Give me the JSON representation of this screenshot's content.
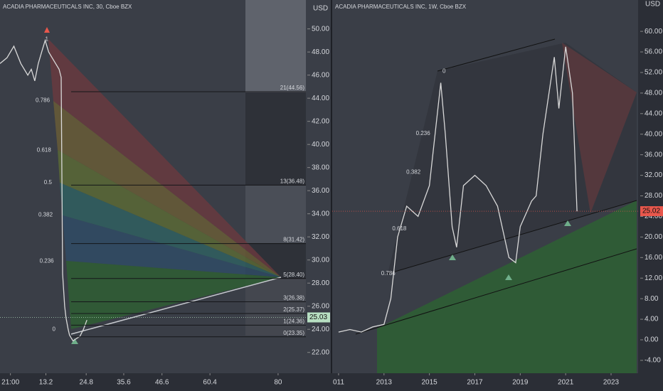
{
  "chart_data": [
    {
      "type": "line",
      "title": "ACADIA PHARMACEUTICALS INC, 30, Cboe BZX",
      "y_axis_label": "USD",
      "color": "#d9d9d9",
      "x": [
        0,
        2,
        4,
        6,
        8,
        9,
        10,
        11,
        12,
        13,
        14,
        15,
        16,
        17,
        17.6,
        18,
        18.6,
        19,
        19.6,
        20,
        21,
        22,
        23,
        24,
        25
      ],
      "values": [
        47,
        47.5,
        48.5,
        47,
        46,
        46.5,
        45.5,
        47,
        48,
        49,
        48,
        47.5,
        47,
        46.5,
        45.8,
        28.8,
        26,
        25,
        24,
        23.5,
        23,
        23.2,
        23.4,
        24,
        24.8
      ],
      "xlim": [
        0,
        88
      ],
      "xticks": [
        {
          "value": 3,
          "label": "21:00"
        },
        13.2,
        24.8,
        35.6,
        46.6,
        60.4,
        80
      ],
      "ylim": [
        20.2,
        52.5
      ],
      "yticks": [
        {
          "value": 22,
          "label": "22.00"
        },
        {
          "value": 24,
          "label": "24.00"
        },
        {
          "value": 26,
          "label": "26.00"
        },
        {
          "value": 28,
          "label": "28.00"
        },
        {
          "value": 30,
          "label": "30.00"
        },
        {
          "value": 32,
          "label": "32.00"
        },
        {
          "value": 34,
          "label": "34.00"
        },
        {
          "value": 36,
          "label": "36.00"
        },
        {
          "value": 38,
          "label": "38.00"
        },
        {
          "value": 40,
          "label": "40.00"
        },
        {
          "value": 42,
          "label": "42.00"
        },
        {
          "value": 44,
          "label": "44.00"
        },
        {
          "value": 46,
          "label": "46.00"
        },
        {
          "value": 48,
          "label": "48.00"
        },
        {
          "value": 50,
          "label": "50.00"
        }
      ],
      "fib_labels": [
        {
          "text": "1",
          "price": 49.1
        },
        {
          "text": "0.786",
          "price": 43.8
        },
        {
          "text": "0.618",
          "price": 39.5
        },
        {
          "text": "0.5",
          "price": 36.7
        },
        {
          "text": "0.382",
          "price": 33.9
        },
        {
          "text": "0.236",
          "price": 29.9
        },
        {
          "text": "0",
          "price": 24.0
        }
      ],
      "box_labels": [
        {
          "text": "21(44.56)",
          "price": 44.56
        },
        {
          "text": "13(36.48)",
          "price": 36.48
        },
        {
          "text": "8(31.42)",
          "price": 31.42
        },
        {
          "text": "5(28.40)",
          "price": 28.4
        },
        {
          "text": "3(26.38)",
          "price": 26.38
        },
        {
          "text": "2(25.37)",
          "price": 25.37
        },
        {
          "text": "1(24.36)",
          "price": 24.36
        },
        {
          "text": "0(23.35)",
          "price": 23.35
        }
      ],
      "last_price": {
        "value": 25.03,
        "label": "25.03",
        "color": "#b7dfc2"
      }
    },
    {
      "type": "line",
      "title": "ACADIA PHARMACEUTICALS INC, 1W, Cboe BZX",
      "y_axis_label": "USD",
      "color": "#d9d9d9",
      "x": [
        2011,
        2011.5,
        2012,
        2012.5,
        2013,
        2013.3,
        2013.6,
        2014,
        2014.5,
        2015,
        2015.5,
        2015.7,
        2016,
        2016.2,
        2016.5,
        2017,
        2017.5,
        2018,
        2018.5,
        2018.8,
        2019,
        2019.5,
        2019.7,
        2020,
        2020.5,
        2020.7,
        2021,
        2021.3,
        2021.5
      ],
      "values": [
        1.5,
        2,
        1.5,
        2.5,
        3,
        8,
        20,
        26,
        24,
        30,
        50,
        40,
        22,
        18,
        30,
        32,
        30,
        26,
        16,
        15,
        22,
        27,
        28,
        40,
        55,
        45,
        57,
        48,
        25
      ],
      "xlim": [
        2010.72,
        2024.19
      ],
      "xticks": [
        {
          "value": 2011,
          "label": "011"
        },
        2013,
        2015,
        2017,
        2019,
        2021,
        2023
      ],
      "ylim": [
        -6.5,
        66.1
      ],
      "yticks": [
        {
          "value": -4,
          "label": "-4.00"
        },
        {
          "value": 0,
          "label": "0.00"
        },
        {
          "value": 4,
          "label": "4.00"
        },
        {
          "value": 8,
          "label": "8.00"
        },
        {
          "value": 12,
          "label": "12.00"
        },
        {
          "value": 16,
          "label": "16.00"
        },
        {
          "value": 20,
          "label": "20.00"
        },
        {
          "value": 24,
          "label": "24.00"
        },
        {
          "value": 28,
          "label": "28.00"
        },
        {
          "value": 32,
          "label": "32.00"
        },
        {
          "value": 36,
          "label": "36.00"
        },
        {
          "value": 40,
          "label": "40.00"
        },
        {
          "value": 44,
          "label": "44.00"
        },
        {
          "value": 48,
          "label": "48.00"
        },
        {
          "value": 52,
          "label": "52.00"
        },
        {
          "value": 56,
          "label": "56.00"
        },
        {
          "value": 60,
          "label": "60.00"
        }
      ],
      "fib_labels": [
        {
          "text": "0",
          "price": 52.2
        },
        {
          "text": "0.236",
          "price": 40.1
        },
        {
          "text": "0.382",
          "price": 32.6
        },
        {
          "text": "0.618",
          "price": 21.6
        },
        {
          "text": "0.786",
          "price": 12.9
        }
      ],
      "box_labels": [],
      "last_price": {
        "value": 25.02,
        "label": "25.02",
        "color": "#e8574c"
      }
    }
  ]
}
